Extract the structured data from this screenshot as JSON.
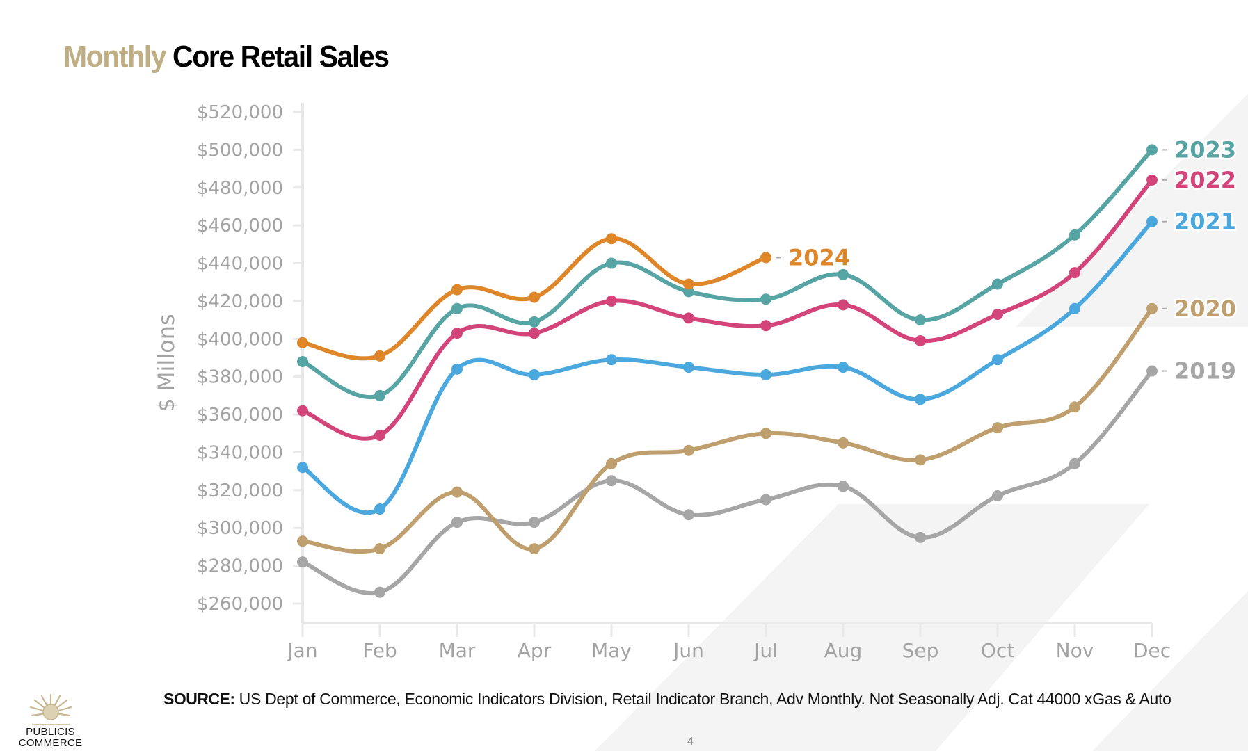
{
  "slide": {
    "title_accent": "Monthly",
    "title_main": "Core Retail Sales",
    "source_label": "SOURCE:",
    "source_text": "US Dept of Commerce, Economic Indicators Division, Retail Indicator Branch, Adv Monthly. Not Seasonally Adj. Cat 44000 xGas & Auto",
    "page_number": "4",
    "logo": {
      "icon": "lion-head-icon",
      "line1": "PUBLICIS",
      "line2": "COMMERCE"
    },
    "colors": {
      "title_accent": "#bfae84",
      "axis_text": "#a3a3a3",
      "background_shape": "#f4f4f4"
    }
  },
  "chart_data": {
    "type": "line",
    "title": "Monthly Core Retail Sales",
    "xlabel": "",
    "ylabel": "$ Millons",
    "categories": [
      "Jan",
      "Feb",
      "Mar",
      "Apr",
      "May",
      "Jun",
      "Jul",
      "Aug",
      "Sep",
      "Oct",
      "Nov",
      "Dec"
    ],
    "ylim": [
      250000,
      525000
    ],
    "yticks": [
      260000,
      280000,
      300000,
      320000,
      340000,
      360000,
      380000,
      400000,
      420000,
      440000,
      460000,
      480000,
      500000,
      520000
    ],
    "ytick_labels": [
      "$260,000",
      "$280,000",
      "$300,000",
      "$320,000",
      "$340,000",
      "$360,000",
      "$380,000",
      "$400,000",
      "$420,000",
      "$440,000",
      "$460,000",
      "$480,000",
      "$500,000",
      "$520,000"
    ],
    "grid": false,
    "legend": "inline-end-labels",
    "smooth": true,
    "series": [
      {
        "name": "2019",
        "color": "#a6a6a6",
        "values": [
          282000,
          266000,
          303000,
          303000,
          325000,
          307000,
          315000,
          322000,
          295000,
          317000,
          334000,
          383000
        ]
      },
      {
        "name": "2020",
        "color": "#bf9f6e",
        "values": [
          293000,
          289000,
          319000,
          289000,
          334000,
          341000,
          350000,
          345000,
          336000,
          353000,
          364000,
          416000
        ]
      },
      {
        "name": "2021",
        "color": "#4aa8de",
        "values": [
          332000,
          310000,
          384000,
          381000,
          389000,
          385000,
          381000,
          385000,
          368000,
          389000,
          416000,
          462000
        ]
      },
      {
        "name": "2022",
        "color": "#d3457a",
        "values": [
          362000,
          349000,
          403000,
          403000,
          420000,
          411000,
          407000,
          418000,
          399000,
          413000,
          435000,
          484000
        ]
      },
      {
        "name": "2023",
        "color": "#56a5a4",
        "values": [
          388000,
          370000,
          416000,
          409000,
          440000,
          425000,
          421000,
          434000,
          410000,
          429000,
          455000,
          500000
        ]
      },
      {
        "name": "2024",
        "color": "#df8629",
        "values": [
          398000,
          391000,
          426000,
          422000,
          453000,
          429000,
          443000
        ]
      }
    ]
  }
}
